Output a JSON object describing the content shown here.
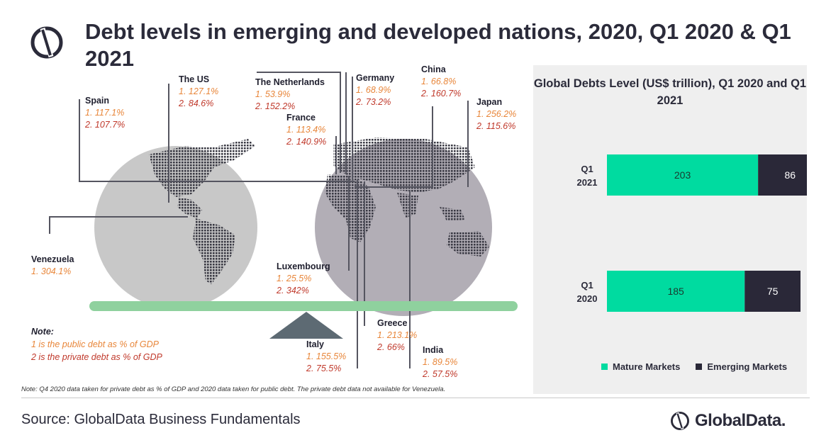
{
  "title": "Debt levels in emerging and developed nations, 2020, Q1 2020 & Q1 2021",
  "countries": [
    {
      "name": "Spain",
      "v1": "1. 117.1%",
      "v2": "2. 107.7%"
    },
    {
      "name": "The US",
      "v1": "1. 127.1%",
      "v2": "2. 84.6%"
    },
    {
      "name": "The Netherlands",
      "v1": "1. 53.9%",
      "v2": "2. 152.2%"
    },
    {
      "name": "France",
      "v1": "1. 113.4%",
      "v2": "2. 140.9%"
    },
    {
      "name": "Germany",
      "v1": "1.  68.9%",
      "v2": "2. 73.2%"
    },
    {
      "name": "China",
      "v1": "1. 66.8%",
      "v2": "2. 160.7%"
    },
    {
      "name": "Japan",
      "v1": "1. 256.2%",
      "v2": "2. 115.6%"
    },
    {
      "name": "Venezuela",
      "v1": "1. 304.1%"
    },
    {
      "name": "Luxembourg",
      "v1": "1. 25.5%",
      "v2": "2. 342%"
    },
    {
      "name": "Greece",
      "v1": "1. 213.1%",
      "v2": "2. 66%"
    },
    {
      "name": "Italy",
      "v1": "1. 155.5%",
      "v2": "2. 75.5%"
    },
    {
      "name": "India",
      "v1": "1. 89.5%",
      "v2": "2. 57.5%"
    }
  ],
  "note": {
    "heading": "Note:",
    "line1": "1 is the public debt as % of GDP",
    "line2": "2 is the private debt as % of GDP"
  },
  "footnote": "Note: Q4 2020 data taken for private debt as % of GDP and 2020 data taken for public debt. The private debt data  not available for Venezuela.",
  "source": "Source: GlobalData Business Fundamentals",
  "brand": "GlobalData.",
  "colors": {
    "mature": "#00dba0",
    "emerging": "#2a2838",
    "scale": "#8fd19e",
    "globe_left": "#c8c8c8",
    "globe_right": "#b2aeb6"
  },
  "chart_data": {
    "type": "bar",
    "orientation": "horizontal",
    "stacked": true,
    "title": "Global Debts Level (US$ trillion), Q1 2020 and Q1 2021",
    "categories": [
      "Q1 2021",
      "Q1 2020"
    ],
    "series": [
      {
        "name": "Mature Markets",
        "values": [
          203,
          185
        ]
      },
      {
        "name": "Emerging Markets",
        "values": [
          86,
          75
        ]
      }
    ],
    "xlim": [
      0,
      300
    ],
    "grid": false,
    "legend": "bottom"
  }
}
